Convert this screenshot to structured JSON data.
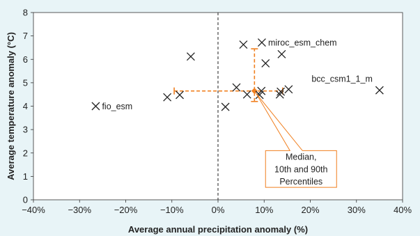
{
  "colors": {
    "background": "#e8f4f7",
    "plot_background": "#ffffff",
    "marker": "#222222",
    "median": "#f07f1f",
    "zero_line": "#333333"
  },
  "chart_data": {
    "type": "scatter",
    "title": "",
    "xlabel": "Average annual precipitation anomaly (%)",
    "ylabel": "Average temperature anomaly (°C)",
    "xlim": [
      -40,
      40
    ],
    "ylim": [
      0,
      8
    ],
    "xticks": [
      -40,
      -30,
      -20,
      -10,
      0,
      10,
      20,
      30,
      40
    ],
    "xtick_labels": [
      "−40%",
      "−30%",
      "−20%",
      "−10%",
      "0%",
      "10%",
      "20%",
      "30%",
      "40%"
    ],
    "yticks": [
      0,
      1,
      2,
      3,
      4,
      5,
      6,
      7,
      8
    ],
    "ytick_labels": [
      "0",
      "1",
      "2",
      "3",
      "4",
      "5",
      "6",
      "7",
      "8"
    ],
    "grid": false,
    "marker": "x",
    "points": [
      {
        "x": -26.5,
        "y": 4.0,
        "label": "fio_esm"
      },
      {
        "x": -11.0,
        "y": 4.38
      },
      {
        "x": -8.3,
        "y": 4.48
      },
      {
        "x": -5.9,
        "y": 6.12
      },
      {
        "x": 1.6,
        "y": 3.97
      },
      {
        "x": 4.0,
        "y": 4.8
      },
      {
        "x": 5.5,
        "y": 6.63
      },
      {
        "x": 6.3,
        "y": 4.5
      },
      {
        "x": 9.0,
        "y": 4.48
      },
      {
        "x": 9.4,
        "y": 4.65
      },
      {
        "x": 9.5,
        "y": 6.72,
        "label": "miroc_esm_chem"
      },
      {
        "x": 10.3,
        "y": 5.83
      },
      {
        "x": 13.4,
        "y": 4.5
      },
      {
        "x": 13.6,
        "y": 4.62
      },
      {
        "x": 13.8,
        "y": 6.22
      },
      {
        "x": 15.3,
        "y": 4.72
      },
      {
        "x": 35.0,
        "y": 4.68,
        "label": "bcc_csm1_1_m"
      }
    ],
    "median": {
      "x": 7.9,
      "y": 4.65,
      "x_p10": -9.5,
      "x_p90": 14.0,
      "y_p10": 4.2,
      "y_p90": 6.45
    },
    "annotation": {
      "lines": [
        "Median,",
        "10th and 90th",
        "Percentiles"
      ],
      "x_center": 18.0,
      "y_top": 2.1,
      "y_bottom": 0.53
    }
  }
}
